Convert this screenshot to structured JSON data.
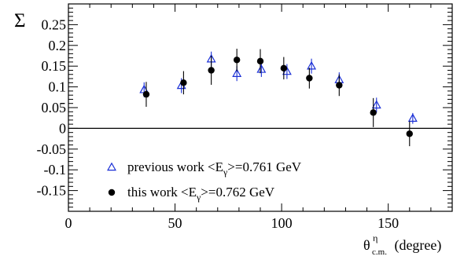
{
  "chart_data": {
    "type": "scatter",
    "ylabel": "Σ",
    "xlabel": {
      "symbol": "θ",
      "superscript": "η",
      "subscript": "c.m.",
      "unit": "(degree)"
    },
    "xlim": [
      0,
      180
    ],
    "ylim": [
      -0.2,
      0.3
    ],
    "x_ticks": [
      0,
      50,
      100,
      150
    ],
    "y_ticks": [
      -0.15,
      -0.1,
      -0.05,
      0,
      0.05,
      0.1,
      0.15,
      0.2,
      0.25
    ],
    "y_tick_labels": [
      "-0.15",
      "-0.1",
      "-0.05",
      "0",
      "0.05",
      "0.1",
      "0.15",
      "0.2",
      "0.25"
    ],
    "grid": false,
    "zero_line": true,
    "legend_position": "bottom-left",
    "series": [
      {
        "name": {
          "prefix": "previous work <E",
          "subscript": "γ",
          "suffix": ">=0.761 GeV"
        },
        "marker": "open-triangle",
        "color": "#1a2fd6",
        "points": [
          {
            "x": 35.5,
            "y": 0.093,
            "err": 0.018
          },
          {
            "x": 53,
            "y": 0.103,
            "err": 0.018
          },
          {
            "x": 67,
            "y": 0.167,
            "err": 0.018
          },
          {
            "x": 79,
            "y": 0.132,
            "err": 0.018
          },
          {
            "x": 90.5,
            "y": 0.142,
            "err": 0.018
          },
          {
            "x": 102.5,
            "y": 0.137,
            "err": 0.018
          },
          {
            "x": 114,
            "y": 0.15,
            "err": 0.018
          },
          {
            "x": 127,
            "y": 0.117,
            "err": 0.018
          },
          {
            "x": 144.5,
            "y": 0.056,
            "err": 0.018
          },
          {
            "x": 161.5,
            "y": 0.024,
            "err": 0.013
          }
        ]
      },
      {
        "name": {
          "prefix": "this work <E",
          "subscript": "γ",
          "suffix": ">=0.762 GeV"
        },
        "marker": "filled-circle",
        "color": "#000000",
        "points": [
          {
            "x": 36.5,
            "y": 0.082,
            "err": 0.03
          },
          {
            "x": 54,
            "y": 0.11,
            "err": 0.028
          },
          {
            "x": 67,
            "y": 0.14,
            "err": 0.035
          },
          {
            "x": 79,
            "y": 0.165,
            "err": 0.027
          },
          {
            "x": 90,
            "y": 0.162,
            "err": 0.029
          },
          {
            "x": 101,
            "y": 0.145,
            "err": 0.027
          },
          {
            "x": 113,
            "y": 0.121,
            "err": 0.025
          },
          {
            "x": 127,
            "y": 0.104,
            "err": 0.026
          },
          {
            "x": 143,
            "y": 0.038,
            "err": 0.035
          },
          {
            "x": 160,
            "y": -0.013,
            "err": 0.03
          }
        ]
      }
    ]
  }
}
